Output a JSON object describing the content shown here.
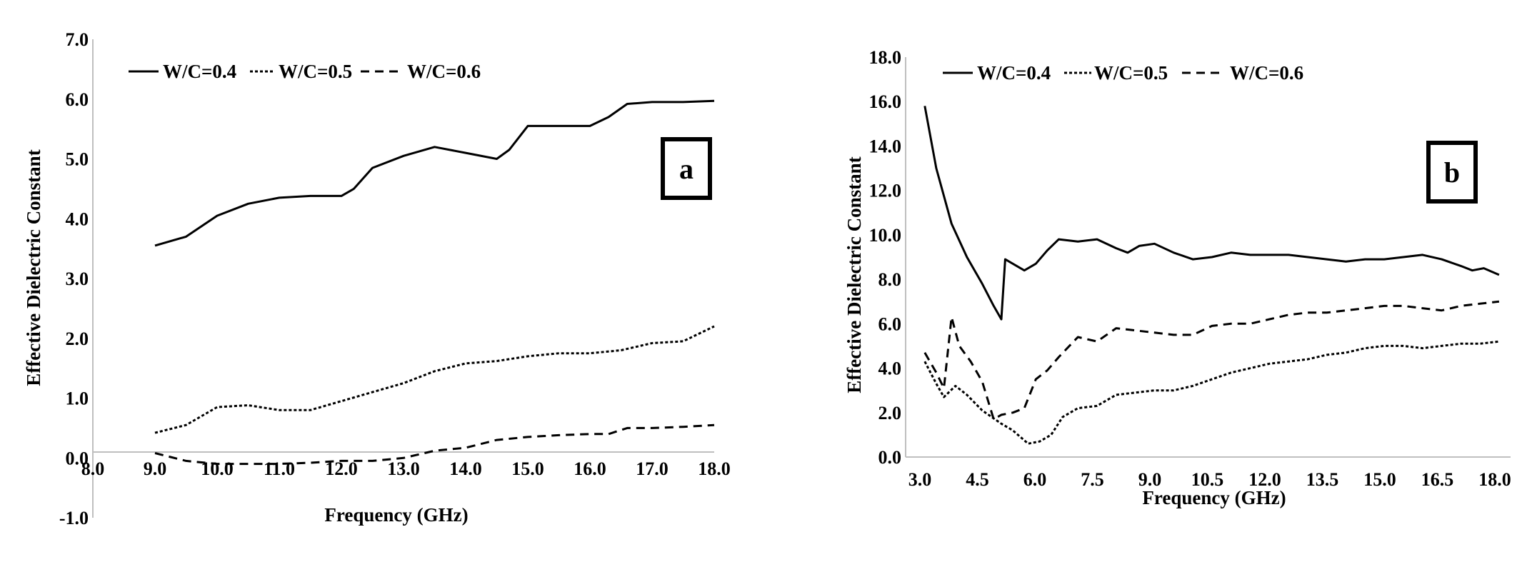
{
  "chart_data": [
    {
      "type": "line",
      "panel_label": "a",
      "xlabel": "Frequency (GHz)",
      "ylabel": "Effective Dielectric Constant",
      "xlim": [
        8.0,
        18.0
      ],
      "ylim": [
        -1.0,
        7.0
      ],
      "xticks": [
        "8.0",
        "9.0",
        "10.0",
        "11.0",
        "12.0",
        "13.0",
        "14.0",
        "15.0",
        "16.0",
        "17.0",
        "18.0"
      ],
      "yticks": [
        "-1.0",
        "0.0",
        "1.0",
        "2.0",
        "3.0",
        "4.0",
        "5.0",
        "6.0",
        "7.0"
      ],
      "legend_position": "top-left",
      "series": [
        {
          "name": "W/C=0.4",
          "style": "solid",
          "x": [
            9.0,
            9.5,
            10.0,
            10.5,
            11.0,
            11.5,
            12.0,
            12.2,
            12.5,
            13.0,
            13.5,
            14.0,
            14.5,
            14.7,
            15.0,
            15.5,
            16.0,
            16.3,
            16.6,
            17.0,
            17.5,
            18.0
          ],
          "y": [
            3.55,
            3.7,
            4.05,
            4.25,
            4.35,
            4.38,
            4.38,
            4.5,
            4.85,
            5.05,
            5.2,
            5.1,
            5.0,
            5.15,
            5.55,
            5.55,
            5.55,
            5.7,
            5.92,
            5.95,
            5.95,
            5.97
          ]
        },
        {
          "name": "W/C=0.5",
          "style": "dotted",
          "x": [
            9.0,
            9.5,
            10.0,
            10.5,
            11.0,
            11.5,
            12.0,
            12.5,
            13.0,
            13.5,
            14.0,
            14.5,
            15.0,
            15.5,
            16.0,
            16.5,
            17.0,
            17.5,
            18.0
          ],
          "y": [
            0.42,
            0.55,
            0.85,
            0.88,
            0.8,
            0.8,
            0.95,
            1.1,
            1.25,
            1.45,
            1.58,
            1.62,
            1.7,
            1.75,
            1.75,
            1.8,
            1.92,
            1.95,
            2.2
          ]
        },
        {
          "name": "W/C=0.6",
          "style": "dashed",
          "x": [
            9.0,
            9.5,
            10.0,
            10.5,
            11.0,
            11.5,
            12.0,
            12.5,
            13.0,
            13.5,
            14.0,
            14.5,
            15.0,
            15.5,
            16.0,
            16.3,
            16.6,
            17.0,
            17.5,
            18.0
          ],
          "y": [
            0.08,
            -0.05,
            -0.1,
            -0.1,
            -0.1,
            -0.08,
            -0.05,
            -0.05,
            0.0,
            0.12,
            0.17,
            0.3,
            0.35,
            0.38,
            0.4,
            0.4,
            0.5,
            0.5,
            0.52,
            0.55
          ]
        }
      ]
    },
    {
      "type": "line",
      "panel_label": "b",
      "xlabel": "Frequency (GHz)",
      "ylabel": "Effective Dielectric Constant",
      "xlim": [
        2.5,
        18.3
      ],
      "ylim": [
        0.0,
        18.0
      ],
      "xticks": [
        "3.0",
        "4.5",
        "6.0",
        "7.5",
        "9.0",
        "10.5",
        "12.0",
        "13.5",
        "15.0",
        "16.5",
        "18.0"
      ],
      "yticks": [
        "0.0",
        "2.0",
        "4.0",
        "6.0",
        "8.0",
        "10.0",
        "12.0",
        "14.0",
        "16.0",
        "18.0"
      ],
      "legend_position": "top-left",
      "series": [
        {
          "name": "W/C=0.4",
          "style": "solid",
          "x": [
            3.0,
            3.3,
            3.7,
            4.1,
            4.5,
            4.8,
            5.0,
            5.1,
            5.3,
            5.6,
            5.9,
            6.2,
            6.5,
            7.0,
            7.5,
            8.0,
            8.3,
            8.6,
            9.0,
            9.5,
            10.0,
            10.5,
            11.0,
            11.5,
            12.0,
            12.5,
            13.0,
            13.5,
            14.0,
            14.5,
            15.0,
            15.5,
            16.0,
            16.5,
            17.0,
            17.3,
            17.6,
            18.0
          ],
          "y": [
            15.8,
            13.0,
            10.5,
            9.0,
            7.8,
            6.8,
            6.2,
            8.9,
            8.7,
            8.4,
            8.7,
            9.3,
            9.8,
            9.7,
            9.8,
            9.4,
            9.2,
            9.5,
            9.6,
            9.2,
            8.9,
            9.0,
            9.2,
            9.1,
            9.1,
            9.1,
            9.0,
            8.9,
            8.8,
            8.9,
            8.9,
            9.0,
            9.1,
            8.9,
            8.6,
            8.4,
            8.5,
            8.2
          ]
        },
        {
          "name": "W/C=0.5",
          "style": "dotted",
          "x": [
            3.0,
            3.3,
            3.5,
            3.8,
            4.1,
            4.5,
            5.0,
            5.3,
            5.7,
            6.0,
            6.3,
            6.6,
            7.0,
            7.5,
            8.0,
            8.5,
            9.0,
            9.5,
            10.0,
            10.5,
            11.0,
            11.5,
            12.0,
            12.5,
            13.0,
            13.5,
            14.0,
            14.5,
            15.0,
            15.5,
            16.0,
            16.5,
            17.0,
            17.5,
            18.0
          ],
          "y": [
            4.3,
            3.3,
            2.7,
            3.2,
            2.8,
            2.1,
            1.5,
            1.2,
            0.6,
            0.7,
            1.0,
            1.8,
            2.2,
            2.3,
            2.8,
            2.9,
            3.0,
            3.0,
            3.2,
            3.5,
            3.8,
            4.0,
            4.2,
            4.3,
            4.4,
            4.6,
            4.7,
            4.9,
            5.0,
            5.0,
            4.9,
            5.0,
            5.1,
            5.1,
            5.2
          ]
        },
        {
          "name": "W/C=0.6",
          "style": "dashed",
          "x": [
            3.0,
            3.3,
            3.5,
            3.7,
            3.9,
            4.2,
            4.5,
            4.8,
            5.0,
            5.3,
            5.6,
            5.9,
            6.2,
            6.5,
            7.0,
            7.5,
            8.0,
            8.5,
            9.0,
            9.5,
            10.0,
            10.5,
            11.0,
            11.5,
            12.0,
            12.5,
            13.0,
            13.5,
            14.0,
            14.5,
            15.0,
            15.5,
            16.0,
            16.5,
            17.0,
            17.5,
            18.0
          ],
          "y": [
            4.7,
            3.8,
            3.1,
            6.3,
            5.0,
            4.3,
            3.4,
            1.7,
            1.9,
            2.0,
            2.2,
            3.5,
            3.9,
            4.5,
            5.4,
            5.2,
            5.8,
            5.7,
            5.6,
            5.5,
            5.5,
            5.9,
            6.0,
            6.0,
            6.2,
            6.4,
            6.5,
            6.5,
            6.6,
            6.7,
            6.8,
            6.8,
            6.7,
            6.6,
            6.8,
            6.9,
            7.0
          ]
        }
      ]
    }
  ]
}
